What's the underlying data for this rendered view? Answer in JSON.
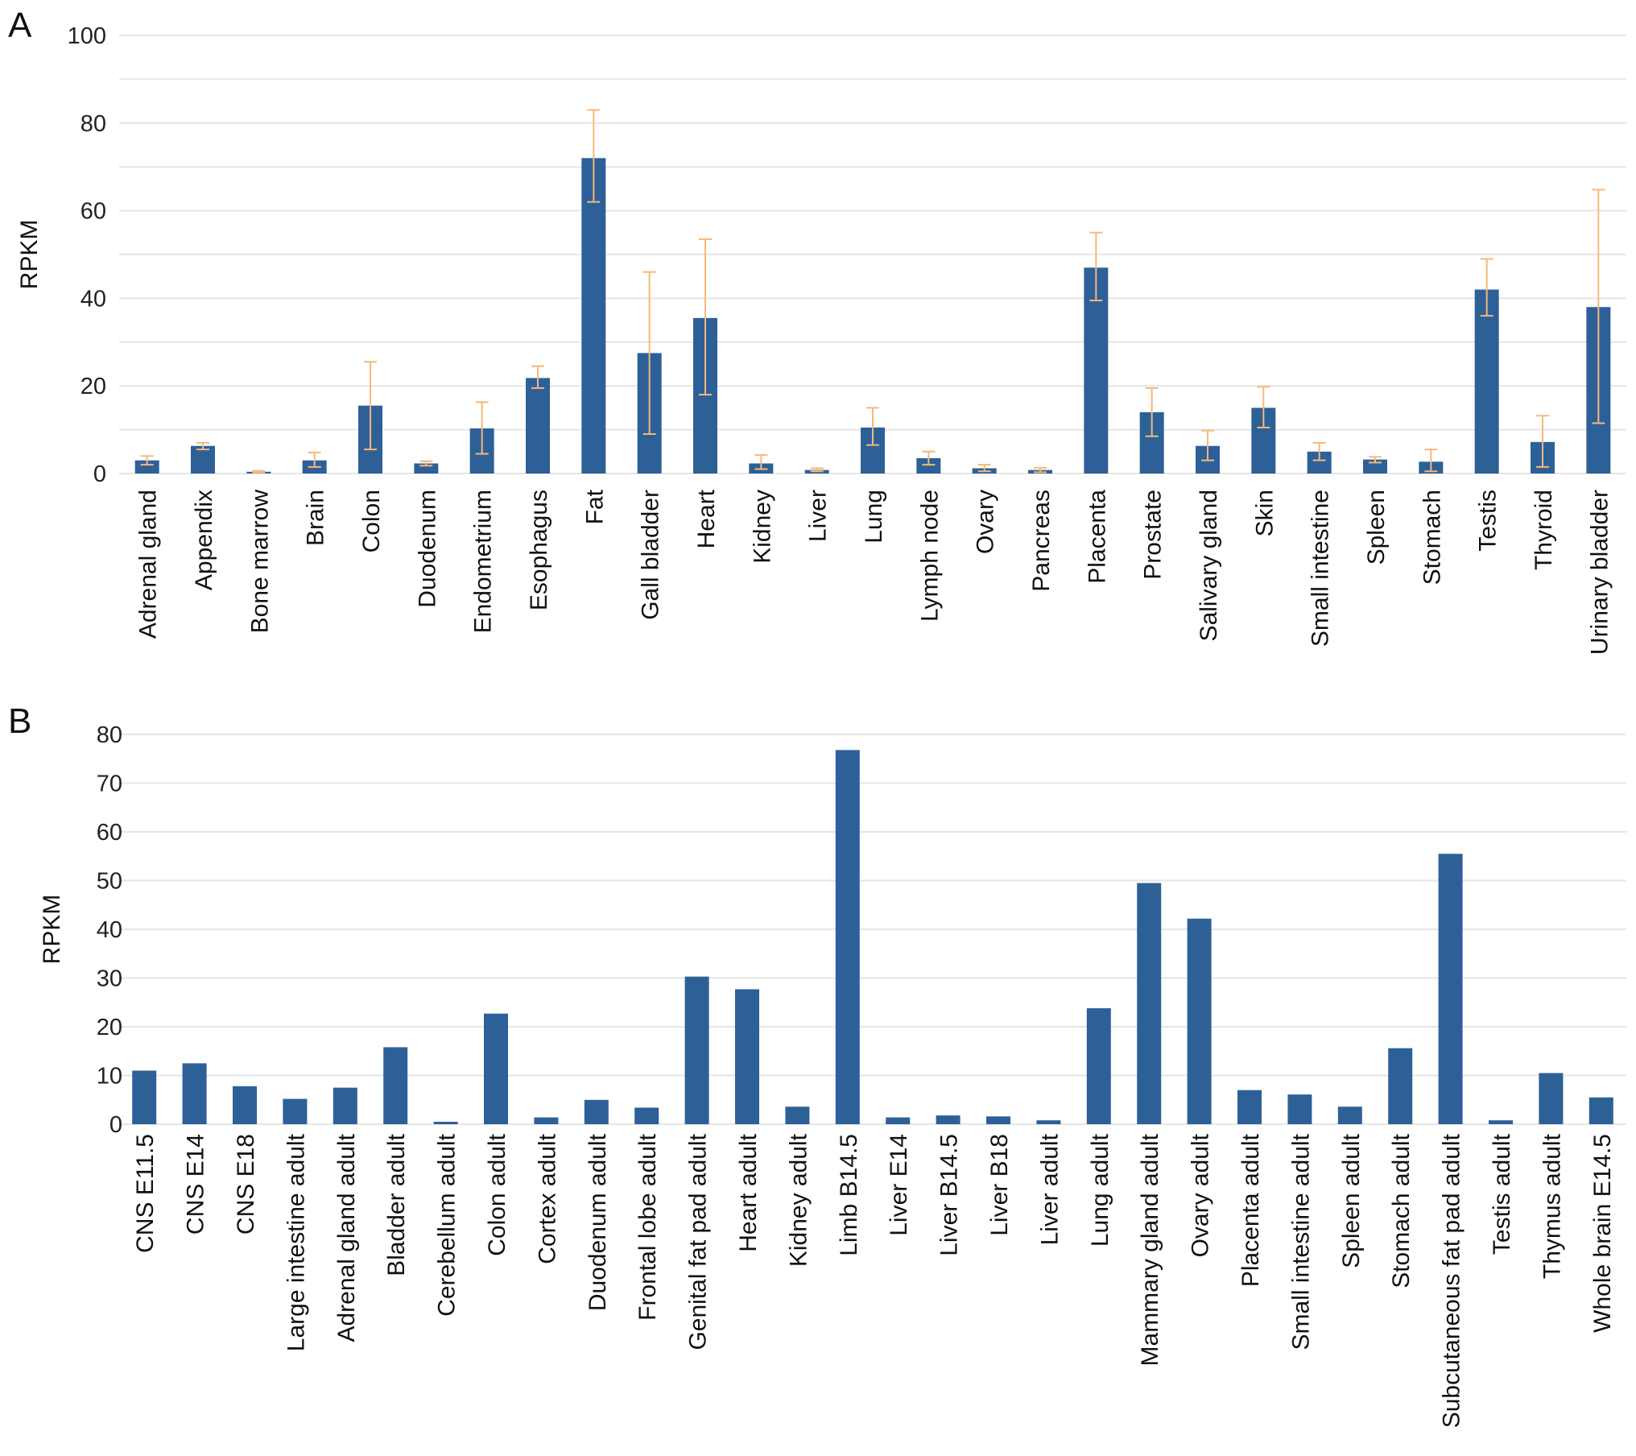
{
  "chart_data": [
    {
      "panel": "A",
      "type": "bar",
      "ylabel": "RPKM",
      "ylim": [
        0,
        100
      ],
      "yticks": [
        0,
        20,
        40,
        60,
        80,
        100
      ],
      "grid": true,
      "error_bars": true,
      "categories": [
        "Adrenal gland",
        "Appendix",
        "Bone marrow",
        "Brain",
        "Colon",
        "Duodenum",
        "Endometrium",
        "Esophagus",
        "Fat",
        "Gall bladder",
        "Heart",
        "Kidney",
        "Liver",
        "Lung",
        "Lymph node",
        "Ovary",
        "Pancreas",
        "Placenta",
        "Prostate",
        "Salivary gland",
        "Skin",
        "Small intestine",
        "Spleen",
        "Stomach",
        "Testis",
        "Thyroid",
        "Urinary bladder"
      ],
      "values": [
        3.0,
        6.3,
        0.4,
        3.0,
        15.5,
        2.3,
        10.3,
        21.8,
        72.0,
        27.5,
        35.5,
        2.3,
        0.8,
        10.5,
        3.5,
        1.2,
        0.8,
        47.0,
        14.0,
        6.3,
        15.0,
        5.0,
        3.2,
        2.7,
        42.0,
        7.2,
        38.0
      ],
      "error_low": [
        2.0,
        5.5,
        0.2,
        1.5,
        5.5,
        1.8,
        4.5,
        19.5,
        62.0,
        9.0,
        18.0,
        1.0,
        0.5,
        6.5,
        2.0,
        0.5,
        0.3,
        39.5,
        8.5,
        3.0,
        10.5,
        3.0,
        2.5,
        0.5,
        36.0,
        1.5,
        11.5
      ],
      "error_high": [
        4.0,
        7.0,
        0.6,
        4.8,
        25.5,
        2.8,
        16.3,
        24.5,
        83.0,
        46.0,
        53.5,
        4.2,
        1.2,
        15.0,
        5.0,
        2.0,
        1.3,
        55.0,
        19.5,
        9.8,
        19.8,
        7.0,
        3.8,
        5.5,
        49.0,
        13.2,
        64.8
      ],
      "colors": {
        "bar": "#2e6098",
        "error": "#f5b87a",
        "grid": "#e6e6e6"
      }
    },
    {
      "panel": "B",
      "type": "bar",
      "ylabel": "RPKM",
      "ylim": [
        0,
        80
      ],
      "yticks": [
        0,
        10,
        20,
        30,
        40,
        50,
        60,
        70,
        80
      ],
      "grid": true,
      "error_bars": false,
      "categories": [
        "CNS E11.5",
        "CNS E14",
        "CNS E18",
        "Large intestine adult",
        "Adrenal gland adult",
        "Bladder adult",
        "Cerebellum adult",
        "Colon adult",
        "Cortex adult",
        "Duodenum adult",
        "Frontal lobe adult",
        "Genital fat pad adult",
        "Heart adult",
        "Kidney adult",
        "Limb B14.5",
        "Liver E14",
        "Liver B14.5",
        "Liver B18",
        "Liver adult",
        "Lung adult",
        "Mammary gland adult",
        "Ovary adult",
        "Placenta adult",
        "Small intestine adult",
        "Spleen adult",
        "Stomach adult",
        "Subcutaneous fat pad adult",
        "Testis adult",
        "Thymus adult",
        "Whole brain E14.5"
      ],
      "values": [
        11.0,
        12.5,
        7.8,
        5.2,
        7.5,
        15.8,
        0.5,
        22.7,
        1.4,
        5.0,
        3.4,
        30.3,
        27.7,
        3.6,
        76.8,
        1.4,
        1.8,
        1.6,
        0.8,
        23.8,
        49.5,
        42.2,
        7.0,
        6.1,
        3.6,
        15.6,
        55.5,
        0.8,
        10.5,
        5.5
      ],
      "colors": {
        "bar": "#2e6098",
        "grid": "#e6e6e6"
      }
    }
  ],
  "panels": {
    "a_label": "A",
    "b_label": "B"
  }
}
